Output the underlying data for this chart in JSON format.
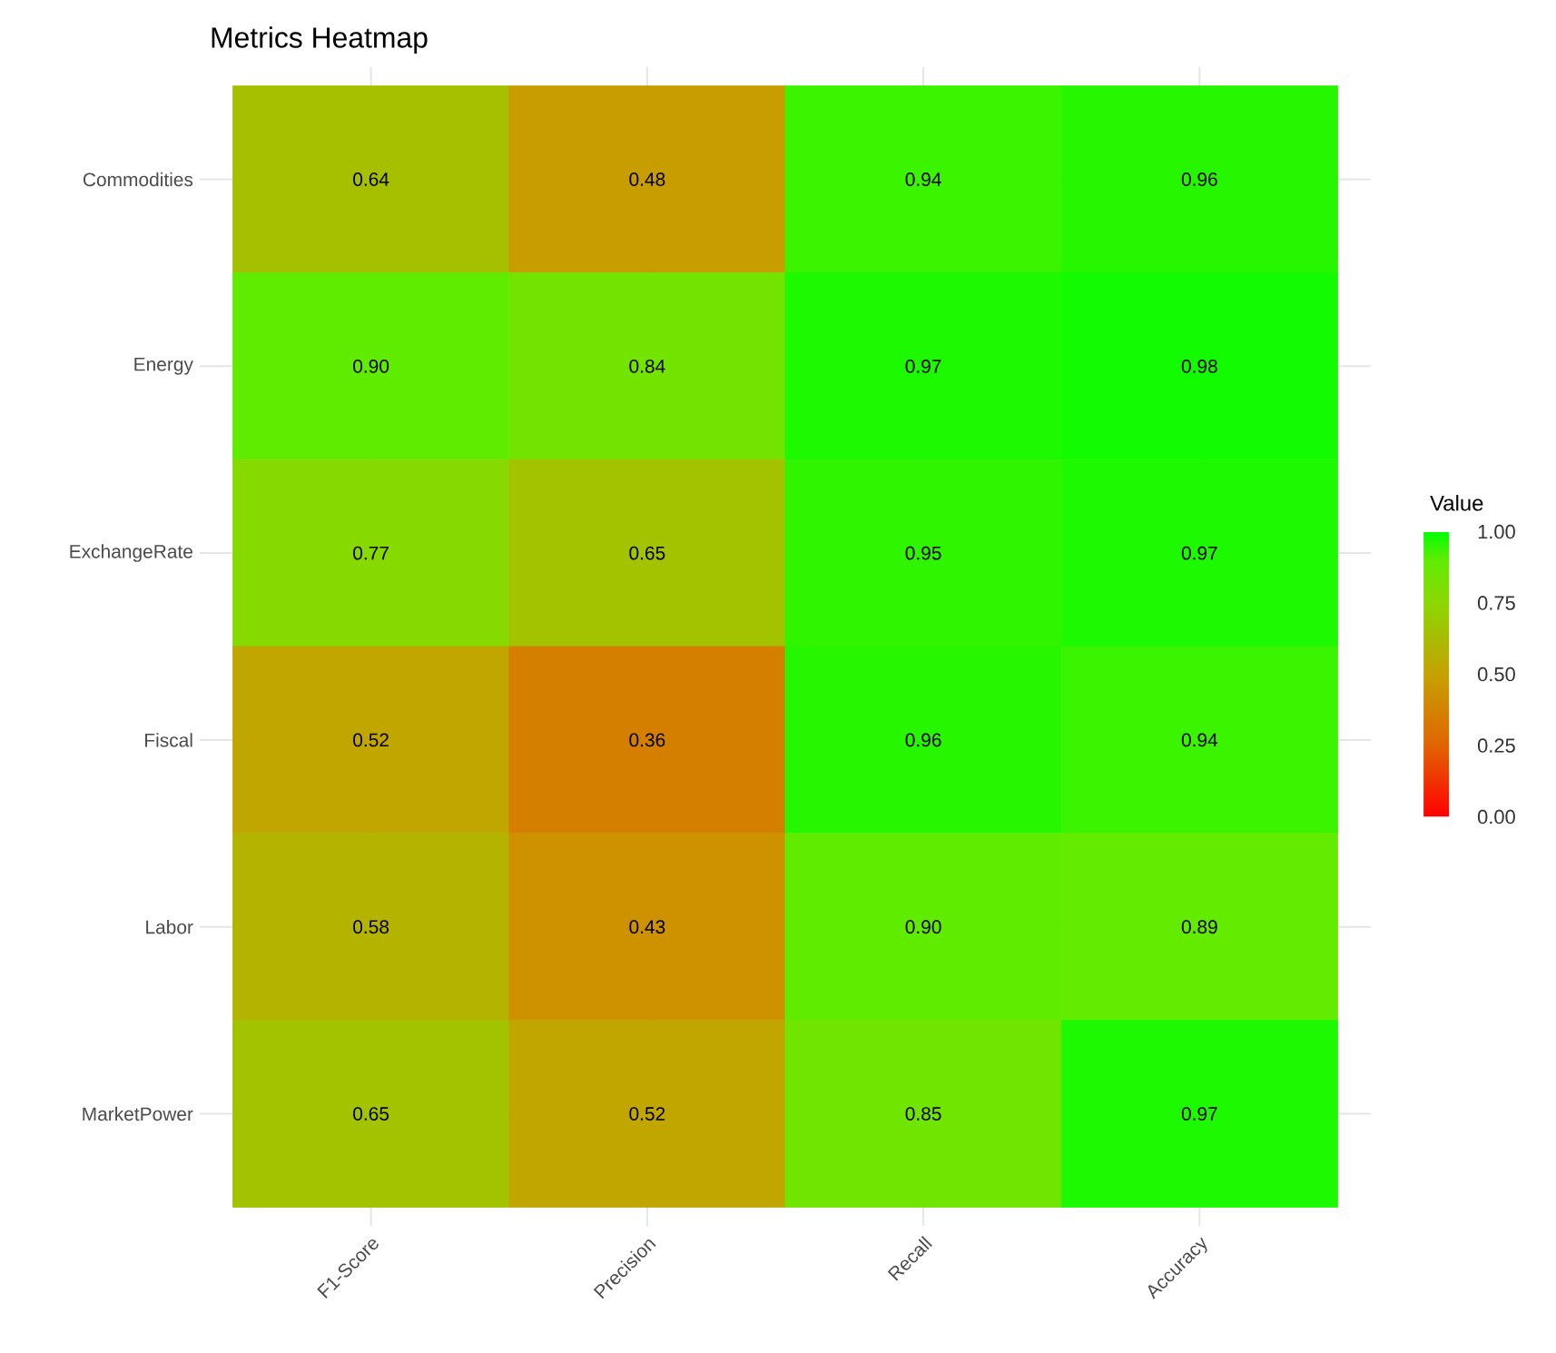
{
  "chart_data": {
    "type": "heatmap",
    "title": "Metrics Heatmap",
    "categories": [
      "F1-Score",
      "Precision",
      "Recall",
      "Accuracy"
    ],
    "y_categories": [
      "Commodities",
      "Energy",
      "ExchangeRate",
      "Fiscal",
      "Labor",
      "MarketPower"
    ],
    "cells": [
      [
        0.64,
        0.48,
        0.94,
        0.96
      ],
      [
        0.9,
        0.84,
        0.97,
        0.98
      ],
      [
        0.77,
        0.65,
        0.95,
        0.97
      ],
      [
        0.52,
        0.36,
        0.96,
        0.94
      ],
      [
        0.58,
        0.43,
        0.9,
        0.89
      ],
      [
        0.65,
        0.52,
        0.85,
        0.97
      ]
    ],
    "cell_labels": [
      [
        "0.64",
        "0.48",
        "0.94",
        "0.96"
      ],
      [
        "0.90",
        "0.84",
        "0.97",
        "0.98"
      ],
      [
        "0.77",
        "0.65",
        "0.95",
        "0.97"
      ],
      [
        "0.52",
        "0.36",
        "0.96",
        "0.94"
      ],
      [
        "0.58",
        "0.43",
        "0.90",
        "0.89"
      ],
      [
        "0.65",
        "0.52",
        "0.85",
        "0.97"
      ]
    ],
    "clabel": "Value",
    "clim": [
      0,
      1
    ],
    "cticks": [
      {
        "value": 0,
        "label": "0.00"
      },
      {
        "value": 0.25,
        "label": "0.25"
      },
      {
        "value": 0.5,
        "label": "0.50"
      },
      {
        "value": 0.75,
        "label": "0.75"
      },
      {
        "value": 1,
        "label": "1.00"
      }
    ],
    "data_labels": true,
    "grid": true
  }
}
